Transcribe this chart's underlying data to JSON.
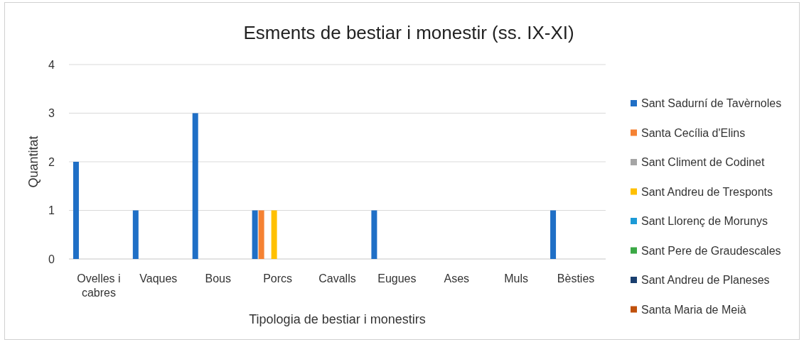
{
  "chart_data": {
    "type": "bar",
    "title": "Esments de  bestiar i monestir (ss. IX-XI)",
    "xlabel": "Tipologia de bestiar i monestirs",
    "ylabel": "Quantitat",
    "categories": [
      "Ovelles i cabres",
      "Vaques",
      "Bous",
      "Porcs",
      "Cavalls",
      "Eugues",
      "Ases",
      "Muls",
      "Bèsties"
    ],
    "series": [
      {
        "name": "Sant Sadurní de Tavèrnoles",
        "color": "#1f6fc6",
        "values": [
          2,
          1,
          3,
          1,
          0,
          1,
          0,
          0,
          1
        ]
      },
      {
        "name": "Santa Cecília d'Elins",
        "color": "#f58233",
        "values": [
          0,
          0,
          0,
          1,
          0,
          0,
          0,
          0,
          0
        ]
      },
      {
        "name": "Sant Climent de Codinet",
        "color": "#a5a5a5",
        "values": [
          0,
          0,
          0,
          0,
          0,
          0,
          0,
          0,
          0
        ]
      },
      {
        "name": "Sant Andreu de Tresponts",
        "color": "#ffc000",
        "values": [
          0,
          0,
          0,
          1,
          0,
          0,
          0,
          0,
          0
        ]
      },
      {
        "name": "Sant Llorenç de Morunys",
        "color": "#1c9ad6",
        "values": [
          0,
          0,
          0,
          0,
          0,
          0,
          0,
          0,
          0
        ]
      },
      {
        "name": "Sant Pere de Graudescales",
        "color": "#3aa845",
        "values": [
          0,
          0,
          0,
          0,
          0,
          0,
          0,
          0,
          0
        ]
      },
      {
        "name": "Sant Andreu de Planeses",
        "color": "#1a3f6f",
        "values": [
          0,
          0,
          0,
          0,
          0,
          0,
          0,
          0,
          0
        ]
      },
      {
        "name": "Santa Maria de Meià",
        "color": "#c0510c",
        "values": [
          0,
          0,
          0,
          0,
          0,
          0,
          0,
          0,
          0
        ]
      }
    ],
    "ylim": [
      0,
      4
    ],
    "yticks": [
      0,
      1,
      2,
      3,
      4
    ],
    "grid": "y",
    "legend": "right"
  }
}
